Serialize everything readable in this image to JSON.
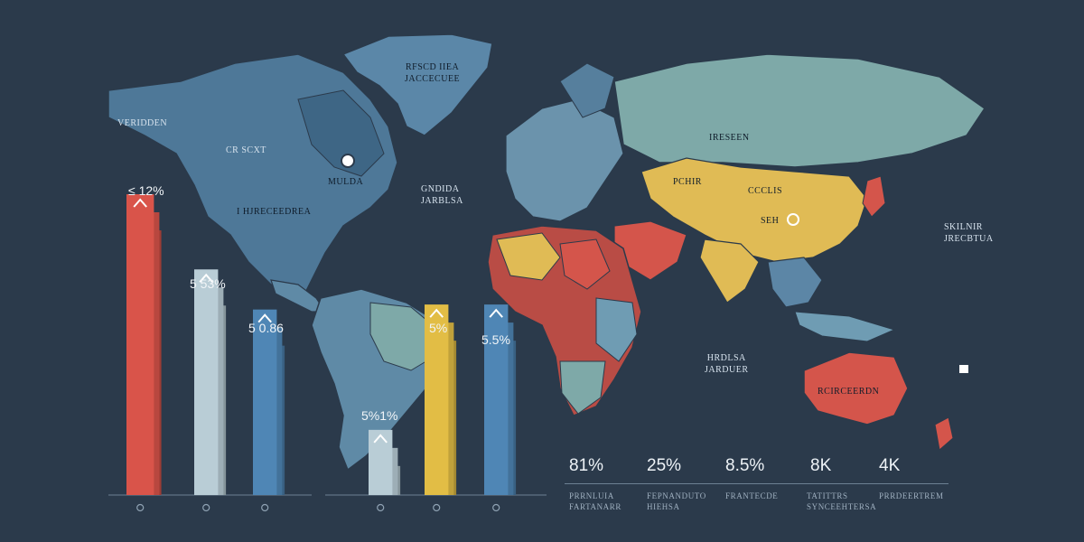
{
  "map_labels": [
    {
      "text": "VERIDDEN",
      "key": "l0"
    },
    {
      "text": "CR SCXT",
      "key": "l1"
    },
    {
      "text": "I HJRECEEDREA",
      "key": "l2"
    },
    {
      "text": "MULDA",
      "key": "l3"
    },
    {
      "text": "RFSCD IIEA\nJACCECUEE",
      "key": "l4"
    },
    {
      "text": "GNDIDA\nJARBLSA",
      "key": "l5"
    },
    {
      "text": "IRESEEN",
      "key": "l6"
    },
    {
      "text": "PCHIR",
      "key": "l7"
    },
    {
      "text": "CCCLIS",
      "key": "l8"
    },
    {
      "text": "SEH",
      "key": "l9"
    },
    {
      "text": "SKILNIR\nJRECBTUA",
      "key": "l10"
    },
    {
      "text": "HRDLSA\nJARDUER",
      "key": "l11"
    },
    {
      "text": "RCIRCEERDN",
      "key": "l12"
    }
  ],
  "stats": [
    {
      "value": "81%",
      "caption": "PRRNLUIA\nFARTANARR"
    },
    {
      "value": "25%",
      "caption": "FEPNANDUTO\nHIEHSA"
    },
    {
      "value": "8.5%",
      "caption": "FRANTECDE"
    },
    {
      "value": "8K",
      "caption": "TATITTRS\nSYNCEEHTERSA"
    },
    {
      "value": "4K",
      "caption": "PRRDEERTREM"
    }
  ],
  "chart_data": {
    "type": "bar",
    "bars": [
      {
        "label": "≤ 12%",
        "value": 12,
        "color": "#d9544a"
      },
      {
        "label": "5 53%",
        "value": 9,
        "color": "#b9cdd6"
      },
      {
        "label": "5 0.86",
        "value": 7.4,
        "color": "#4f86b5"
      },
      {
        "label": "5%1%",
        "value": 2.6,
        "color": "#b9cdd6"
      },
      {
        "label": "5%",
        "value": 7.6,
        "color": "#e2bd45"
      },
      {
        "label": "5.5%",
        "value": 7.6,
        "color": "#4f86b5"
      }
    ],
    "ylim": [
      0,
      14
    ],
    "title": "",
    "xlabel": "",
    "ylabel": ""
  },
  "colors": {
    "background": "#2b3a4b",
    "ocean_dark": "#1f2e3d",
    "land_blue": "#5c86a6",
    "land_teal": "#7ea9a8",
    "land_yellow": "#e0bb55",
    "land_red": "#d4554b"
  }
}
